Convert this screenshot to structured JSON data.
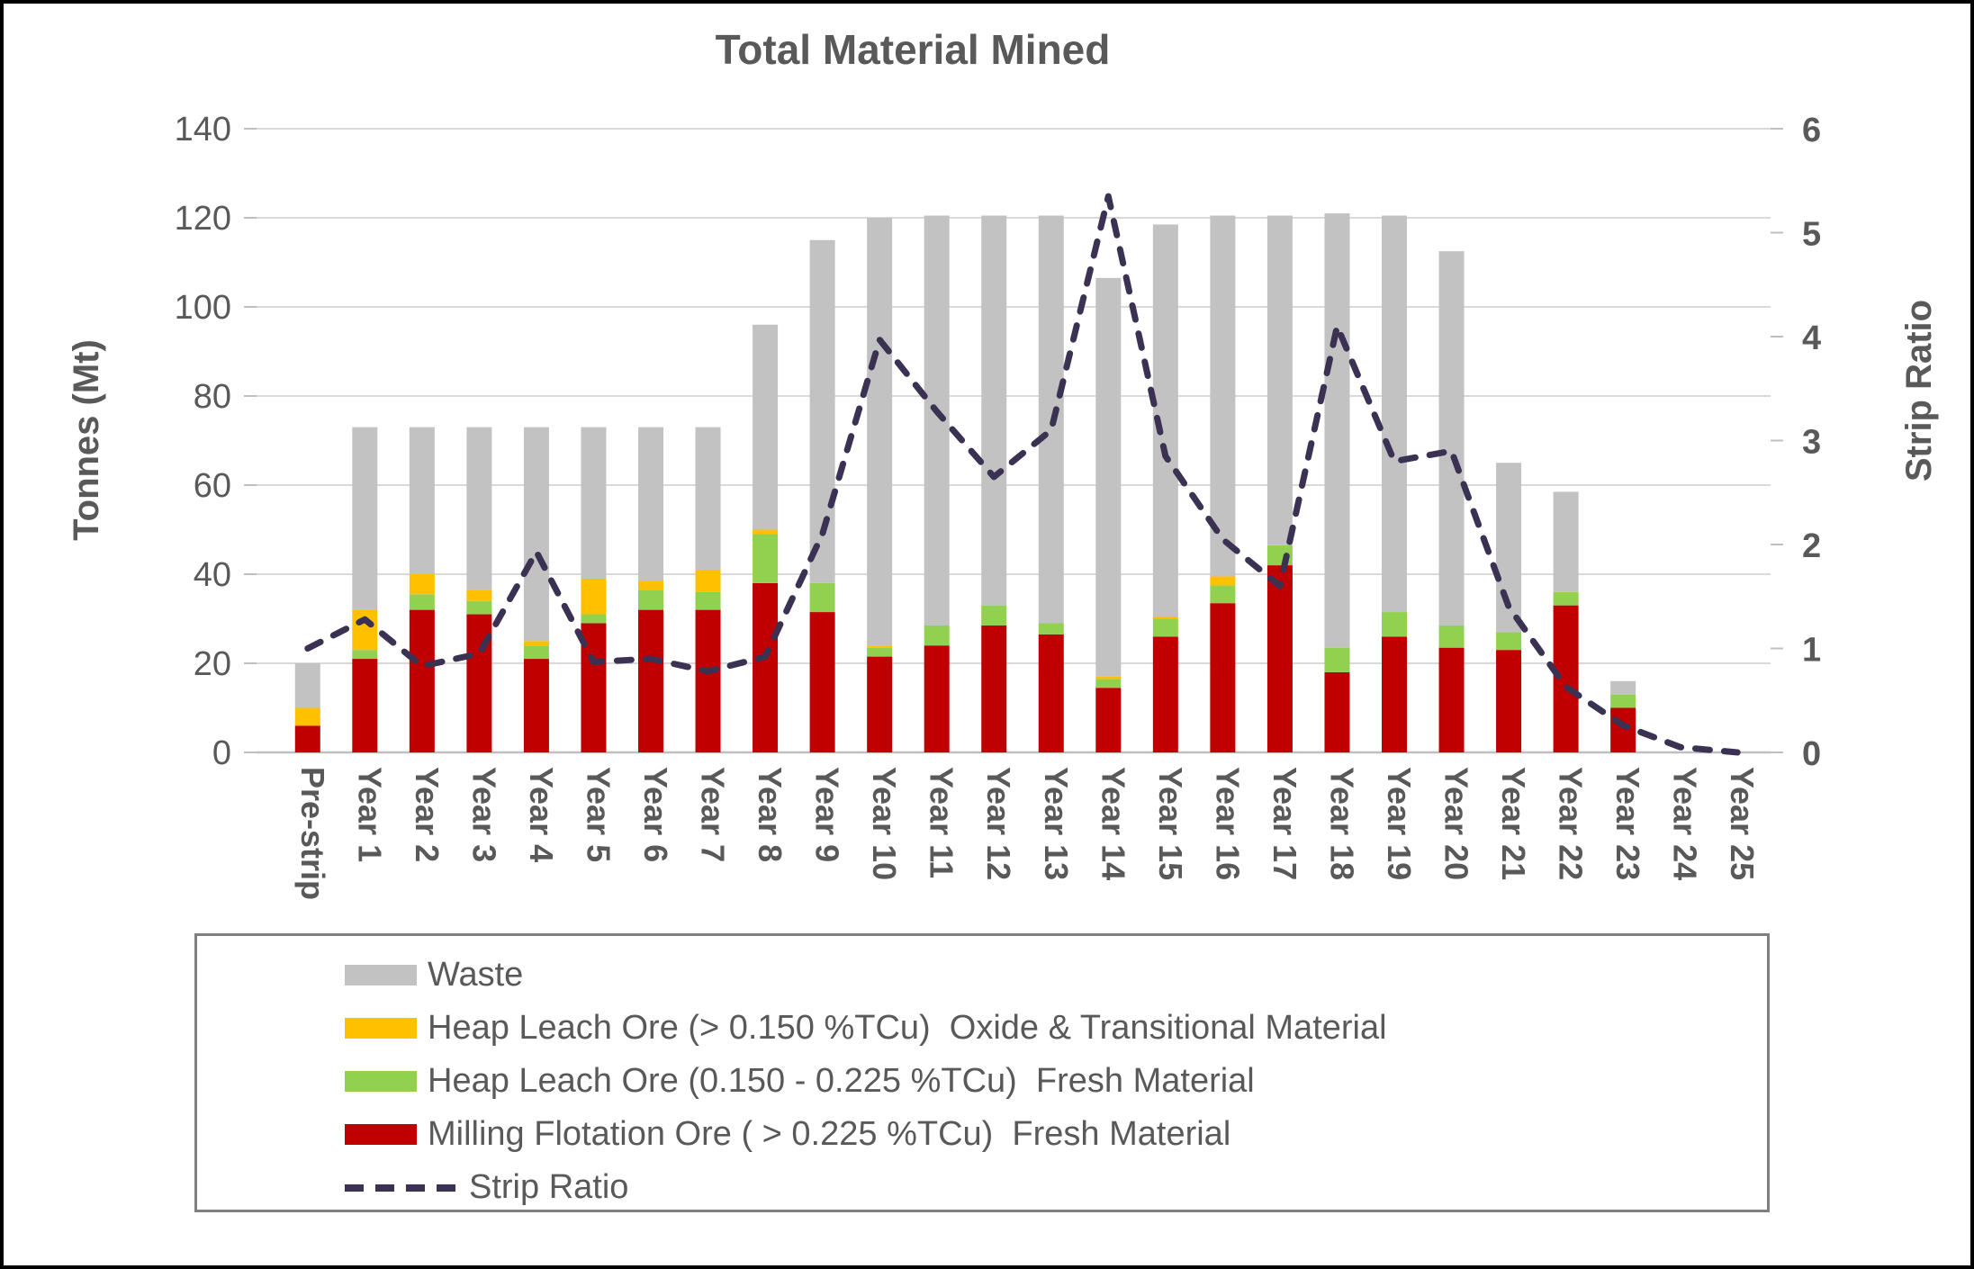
{
  "page": {
    "title": "Total Material Mined"
  },
  "chart_data": {
    "type": "bar",
    "subtype": "stacked-bar-with-line",
    "title": "Total Material Mined",
    "left_axis": {
      "label": "Tonnes (Mt)",
      "min": 0,
      "max": 140,
      "step": 20,
      "ticks": [
        0,
        20,
        40,
        60,
        80,
        100,
        120,
        140
      ]
    },
    "right_axis": {
      "label": "Strip Ratio",
      "min": 0,
      "max": 6,
      "step": 1,
      "ticks": [
        0,
        1,
        2,
        3,
        4,
        5,
        6
      ]
    },
    "categories": [
      "Pre-strip",
      "Year 1",
      "Year 2",
      "Year 3",
      "Year 4",
      "Year 5",
      "Year 6",
      "Year 7",
      "Year 8",
      "Year 9",
      "Year 10",
      "Year 11",
      "Year 12",
      "Year 13",
      "Year 14",
      "Year 15",
      "Year 16",
      "Year 17",
      "Year 18",
      "Year 19",
      "Year 20",
      "Year 21",
      "Year 22",
      "Year 23",
      "Year 24",
      "Year 25"
    ],
    "series": [
      {
        "name": "Milling Flotation Ore ( > 0.225 %TCu)  Fresh Material",
        "color": "#C00000",
        "values": [
          6,
          21,
          32,
          31,
          21,
          29,
          32,
          32,
          38,
          31.5,
          21.5,
          24,
          28.5,
          26.5,
          14.5,
          26,
          33.5,
          42,
          18,
          26,
          23.5,
          23,
          33,
          10,
          0,
          0
        ]
      },
      {
        "name": "Heap Leach Ore (0.150 - 0.225 %TCu)  Fresh Material",
        "color": "#92D050",
        "values": [
          0,
          2,
          3.5,
          3,
          3,
          2,
          4.5,
          4,
          11,
          6.5,
          2,
          4.5,
          4.5,
          2.5,
          2,
          4,
          4,
          4.5,
          5.5,
          5.5,
          5,
          4,
          3,
          3,
          0,
          0
        ]
      },
      {
        "name": "Heap Leach Ore (> 0.150 %TCu)  Oxide & Transitional Material",
        "color": "#FFC000",
        "values": [
          4,
          9,
          4.5,
          2.5,
          1,
          8,
          2,
          5,
          1,
          0,
          0.5,
          0,
          0,
          0,
          0.5,
          0.5,
          2,
          0,
          0,
          0,
          0,
          0,
          0,
          0,
          0,
          0
        ]
      },
      {
        "name": "Waste",
        "color": "#C2C2C2",
        "values": [
          10,
          41,
          33,
          36.5,
          48,
          34,
          34.5,
          32,
          46,
          77,
          96,
          92,
          87.5,
          91.5,
          89.5,
          88,
          81,
          74,
          97.5,
          89,
          84,
          38,
          22.5,
          3,
          0,
          0
        ]
      }
    ],
    "line_series": {
      "name": "Strip Ratio",
      "color": "#3B3153",
      "values": [
        1.0,
        1.28,
        0.83,
        0.95,
        1.93,
        0.87,
        0.9,
        0.78,
        0.92,
        2.1,
        3.97,
        3.28,
        2.65,
        3.1,
        5.35,
        2.85,
        2.05,
        1.6,
        4.1,
        2.8,
        2.9,
        1.4,
        0.63,
        0.26,
        0.05,
        0
      ]
    },
    "legend": [
      {
        "label": "Waste",
        "swatch": "bar",
        "color": "#C2C2C2"
      },
      {
        "label": "Heap Leach Ore (> 0.150 %TCu)  Oxide & Transitional Material",
        "swatch": "bar",
        "color": "#FFC000"
      },
      {
        "label": "Heap Leach Ore (0.150 - 0.225 %TCu)  Fresh Material",
        "swatch": "bar",
        "color": "#92D050"
      },
      {
        "label": "Milling Flotation Ore ( > 0.225 %TCu)  Fresh Material",
        "swatch": "bar",
        "color": "#C00000"
      },
      {
        "label": "Strip Ratio",
        "swatch": "dash",
        "color": "#3B3153"
      }
    ],
    "style": {
      "gridline_color": "#D9D9D9",
      "axis_line_color": "#BFBFBF",
      "text_color": "#595959",
      "legend_border_color": "#808080"
    },
    "layout": {
      "grid": true,
      "legend_position": "bottom"
    }
  }
}
